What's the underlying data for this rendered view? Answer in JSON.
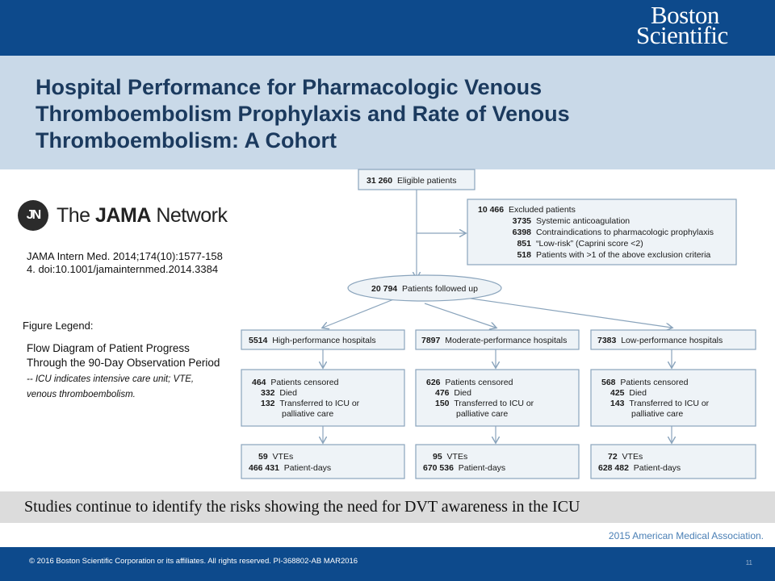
{
  "header": {
    "logo_line1": "Boston",
    "logo_line2": "Scientific"
  },
  "title": "Hospital Performance for Pharmacologic Venous Thromboembolism Prophylaxis and Rate of Venous Thromboembolism: A Cohort",
  "jama_logo": {
    "mark": "JN",
    "text_prefix": "The ",
    "text_bold": "JAMA",
    "text_suffix": " Network"
  },
  "citation": "JAMA Intern Med. 2014;174(10):1577-1584. doi:10.1001/jamainternmed.2014.3384",
  "figure_legend_label": "Figure Legend:",
  "figure_legend_main": "Flow Diagram of Patient Progress Through the 90-Day Observation Period",
  "figure_legend_note": " -- ICU indicates intensive care unit; VTE, venous thromboembolism.",
  "flow": {
    "eligible": "31 260  Eligible patients",
    "excluded": {
      "head": "10 466  Excluded patients",
      "rows": [
        {
          "n": "3735",
          "label": "Systemic anticoagulation"
        },
        {
          "n": "6398",
          "label": "Contraindications to pharmacologic prophylaxis"
        },
        {
          "n": "851",
          "label": "“Low-risk” (Caprini score <2)"
        },
        {
          "n": "518",
          "label": "Patients with >1 of the above exclusion criteria"
        }
      ]
    },
    "followed": "20 794  Patients followed up",
    "columns": [
      {
        "group": "5514  High-performance hospitals",
        "censored": "464  Patients censored",
        "died": "332  Died",
        "transferred_1": "132  Transferred to ICU or",
        "transferred_2": "palliative care",
        "vtes": "59  VTEs",
        "patient_days": "466 431  Patient-days"
      },
      {
        "group": "7897  Moderate-performance hospitals",
        "censored": "626  Patients censored",
        "died": "476  Died",
        "transferred_1": "150  Transferred to ICU or",
        "transferred_2": "palliative care",
        "vtes": "95  VTEs",
        "patient_days": "670 536  Patient-days"
      },
      {
        "group": "7383  Low-performance hospitals",
        "censored": "568  Patients censored",
        "died": "425  Died",
        "transferred_1": "143  Transferred to ICU or",
        "transferred_2": "palliative care",
        "vtes": "72  VTEs",
        "patient_days": "628 482  Patient-days"
      }
    ]
  },
  "banner": "Studies continue to identify the risks showing the need for DVT awareness in the ICU",
  "ama_copyright": "2015 American Medical Association.",
  "footer": {
    "copyright": "© 2016 Boston Scientific Corporation or its affiliates. All rights reserved. PI-368802-AB MAR2016",
    "page_number": "11"
  },
  "colors": {
    "brand_blue": "#0d4a8c",
    "title_band": "#c9d9e8",
    "title_text": "#1b3a5e",
    "box_fill": "#eef3f7",
    "box_stroke": "#8aa4bc"
  }
}
